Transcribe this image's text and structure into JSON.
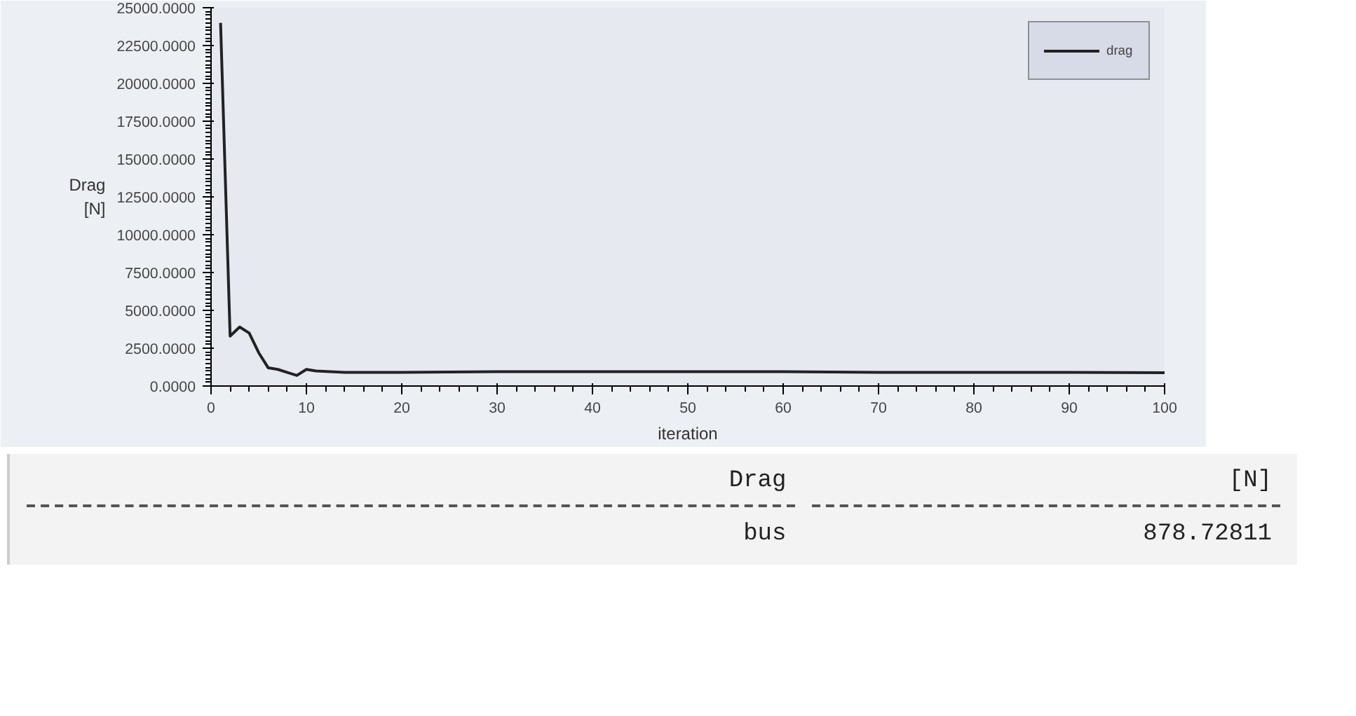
{
  "chart_data": {
    "type": "line",
    "xlabel": "iteration",
    "ylabel": "Drag\n[N]",
    "xlim": [
      0,
      100
    ],
    "xticks": [
      0,
      10,
      20,
      30,
      40,
      50,
      60,
      70,
      80,
      90,
      100
    ],
    "ylim": [
      0,
      25000
    ],
    "yticks": [
      {
        "value": 0,
        "label": "0.0000"
      },
      {
        "value": 2500,
        "label": "2500.0000"
      },
      {
        "value": 5000,
        "label": "5000.0000"
      },
      {
        "value": 7500,
        "label": "7500.0000"
      },
      {
        "value": 10000,
        "label": "10000.0000"
      },
      {
        "value": 12500,
        "label": "12500.0000"
      },
      {
        "value": 15000,
        "label": "15000.0000"
      },
      {
        "value": 17500,
        "label": "17500.0000"
      },
      {
        "value": 20000,
        "label": "20000.0000"
      },
      {
        "value": 22500,
        "label": "22500.0000"
      },
      {
        "value": 25000,
        "label": "25000.0000"
      }
    ],
    "grid": false,
    "legend": "top right",
    "marker": "none",
    "line_style": "solid",
    "series": [
      {
        "name": "drag",
        "color": "#222222",
        "x": [
          1,
          2,
          3,
          4,
          5,
          6,
          7,
          8,
          9,
          10,
          11,
          14,
          20,
          30,
          40,
          50,
          60,
          70,
          80,
          90,
          100
        ],
        "values": [
          24000,
          3300,
          3900,
          3500,
          2200,
          1200,
          1100,
          900,
          700,
          1100,
          1000,
          900,
          900,
          950,
          950,
          950,
          950,
          900,
          900,
          900,
          878.72811
        ]
      }
    ],
    "annotations": [
      "Drag",
      "[N]",
      "bus",
      "878.72811"
    ]
  }
}
